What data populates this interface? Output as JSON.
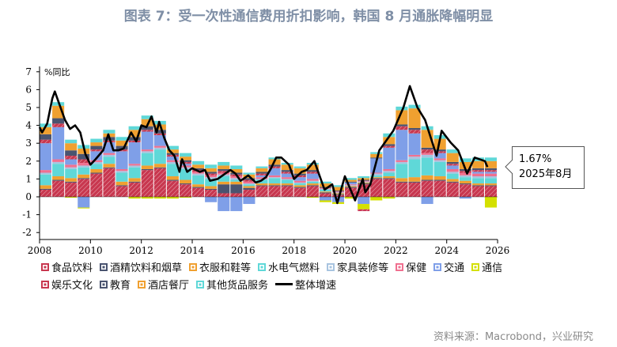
{
  "title": "图表 7：受一次性通信费用折扣影响，韩国 8 月通胀降幅明显",
  "source": "资料来源：Macrobond，兴业研究",
  "callout": {
    "value": "1.67%",
    "date": "2025年8月"
  },
  "chart_data": {
    "type": "bar",
    "stacked": true,
    "ylabel": "%同比",
    "ylim": [
      -2,
      7
    ],
    "xlim": [
      2008,
      2026
    ],
    "yticks": [
      "-2",
      "-1",
      "0",
      "1",
      "2",
      "3",
      "4",
      "5",
      "6",
      "7"
    ],
    "xticks": [
      "2008",
      "2010",
      "2012",
      "2014",
      "2016",
      "2018",
      "2020",
      "2022",
      "2024",
      "2026"
    ],
    "grid": false,
    "legend": "bottom",
    "periods": [
      2008.0,
      2008.5,
      2009.0,
      2009.5,
      2010.0,
      2010.5,
      2011.0,
      2011.5,
      2012.0,
      2012.5,
      2013.0,
      2013.5,
      2014.0,
      2014.5,
      2015.0,
      2015.5,
      2016.0,
      2016.5,
      2017.0,
      2017.5,
      2018.0,
      2018.5,
      2019.0,
      2019.5,
      2020.0,
      2020.5,
      2021.0,
      2021.5,
      2022.0,
      2022.5,
      2023.0,
      2023.5,
      2024.0,
      2024.5,
      2025.0,
      2025.5
    ],
    "series": [
      {
        "name": "食品饮料",
        "color": "#c8374f",
        "values": [
          0.4,
          0.9,
          0.8,
          1.0,
          1.3,
          1.6,
          0.6,
          0.8,
          1.5,
          1.6,
          0.9,
          0.7,
          0.5,
          0.4,
          0.2,
          0.2,
          0.4,
          0.6,
          0.6,
          0.6,
          0.5,
          0.6,
          0.2,
          0.1,
          0.5,
          0.7,
          1.0,
          1.0,
          0.8,
          0.8,
          0.9,
          0.9,
          0.8,
          0.7,
          0.6,
          0.6
        ]
      },
      {
        "name": "酒精饮料和烟草",
        "color": "#4a5470",
        "values": [
          0.05,
          0.05,
          0.05,
          0.05,
          0.05,
          0.05,
          0.05,
          0.05,
          0.05,
          0.05,
          0.05,
          0.05,
          0.05,
          0.05,
          0.5,
          0.5,
          0.1,
          0.05,
          0.05,
          0.05,
          0.05,
          0.05,
          0.05,
          0.05,
          0.05,
          0.05,
          0.05,
          0.05,
          0.05,
          0.05,
          0.05,
          0.05,
          0.05,
          0.05,
          0.05,
          0.05
        ]
      },
      {
        "name": "衣服和鞋等",
        "color": "#f0a030",
        "values": [
          0.2,
          0.2,
          0.2,
          0.2,
          0.2,
          0.2,
          0.2,
          0.2,
          0.2,
          0.2,
          0.2,
          0.2,
          0.15,
          0.15,
          0.15,
          0.15,
          0.1,
          0.1,
          0.1,
          0.1,
          0.1,
          0.1,
          0.05,
          0.05,
          0.05,
          0.05,
          0.05,
          0.1,
          0.2,
          0.25,
          0.25,
          0.2,
          0.15,
          0.15,
          0.1,
          0.1
        ]
      },
      {
        "name": "水电气燃料",
        "color": "#5fd8d8",
        "values": [
          0.6,
          0.7,
          0.5,
          0.4,
          0.3,
          0.4,
          0.5,
          0.6,
          0.7,
          0.8,
          0.7,
          0.6,
          0.5,
          0.4,
          0.3,
          0.1,
          0.1,
          0.2,
          0.3,
          0.2,
          0.1,
          0.1,
          0.1,
          0.0,
          0.0,
          0.0,
          0.1,
          0.2,
          0.8,
          1.0,
          1.0,
          0.8,
          0.3,
          0.2,
          0.3,
          0.3
        ]
      },
      {
        "name": "家具装修等",
        "color": "#a8c4e0",
        "values": [
          0.1,
          0.1,
          0.1,
          0.1,
          0.1,
          0.1,
          0.1,
          0.1,
          0.1,
          0.1,
          0.1,
          0.1,
          0.1,
          0.1,
          0.1,
          0.1,
          0.05,
          0.05,
          0.05,
          0.05,
          0.05,
          0.05,
          0.05,
          0.05,
          0.05,
          0.05,
          0.1,
          0.1,
          0.1,
          0.15,
          0.15,
          0.1,
          0.1,
          0.1,
          0.1,
          0.1
        ]
      },
      {
        "name": "保健",
        "color": "#f07090",
        "values": [
          0.15,
          0.15,
          0.15,
          0.15,
          0.1,
          0.1,
          0.1,
          0.1,
          0.1,
          0.1,
          0.1,
          0.1,
          0.1,
          0.1,
          0.1,
          0.1,
          0.1,
          0.1,
          0.1,
          0.1,
          0.1,
          0.1,
          0.05,
          0.05,
          0.05,
          0.05,
          0.05,
          0.1,
          0.1,
          0.1,
          0.1,
          0.1,
          0.15,
          0.15,
          0.15,
          0.15
        ]
      },
      {
        "name": "交通",
        "color": "#7f9fe8",
        "values": [
          1.5,
          1.8,
          0.3,
          -0.6,
          0.5,
          0.6,
          1.0,
          1.2,
          1.0,
          0.6,
          0.2,
          0.1,
          0.0,
          -0.3,
          -0.8,
          -0.8,
          -0.4,
          0.1,
          0.4,
          0.2,
          0.2,
          0.3,
          -0.2,
          -0.3,
          0.1,
          -0.4,
          0.8,
          1.2,
          1.7,
          1.2,
          -0.4,
          0.3,
          0.2,
          -0.1,
          0.1,
          0.1
        ]
      },
      {
        "name": "通信",
        "color": "#d4e000",
        "values": [
          0.0,
          0.0,
          -0.05,
          -0.05,
          0.0,
          0.0,
          0.0,
          -0.1,
          -0.1,
          -0.1,
          -0.1,
          -0.05,
          0.0,
          0.0,
          0.0,
          0.0,
          0.0,
          0.0,
          0.0,
          0.0,
          0.0,
          -0.05,
          -0.1,
          -0.1,
          -0.1,
          -0.3,
          -0.2,
          -0.1,
          0.0,
          0.0,
          0.0,
          0.0,
          0.0,
          0.0,
          0.0,
          -0.6
        ]
      },
      {
        "name": "娱乐文化",
        "color": "#c8374f",
        "values": [
          0.2,
          0.2,
          0.2,
          0.2,
          0.1,
          0.1,
          0.1,
          0.1,
          0.1,
          0.1,
          0.1,
          0.1,
          0.1,
          0.1,
          0.1,
          0.1,
          0.1,
          0.1,
          0.1,
          0.1,
          0.1,
          0.1,
          0.0,
          0.0,
          0.0,
          -0.1,
          0.0,
          0.1,
          0.2,
          0.2,
          0.2,
          0.1,
          0.1,
          0.1,
          0.1,
          0.1
        ]
      },
      {
        "name": "教育",
        "color": "#4a5470",
        "values": [
          0.3,
          0.3,
          0.3,
          0.3,
          0.2,
          0.2,
          0.2,
          0.2,
          0.2,
          0.2,
          0.1,
          0.1,
          0.1,
          0.1,
          0.1,
          0.1,
          0.1,
          0.1,
          0.1,
          0.1,
          0.1,
          0.1,
          0.05,
          0.05,
          0.05,
          0.05,
          0.05,
          0.1,
          0.1,
          0.1,
          0.1,
          0.1,
          0.1,
          0.1,
          0.1,
          0.1
        ]
      },
      {
        "name": "酒店餐厅",
        "color": "#f0a030",
        "values": [
          0.4,
          0.7,
          0.4,
          0.3,
          0.2,
          0.2,
          0.3,
          0.4,
          0.4,
          0.3,
          0.2,
          0.2,
          0.2,
          0.2,
          0.2,
          0.2,
          0.2,
          0.2,
          0.3,
          0.3,
          0.3,
          0.3,
          0.2,
          0.2,
          0.1,
          0.1,
          0.2,
          0.4,
          0.8,
          1.1,
          1.0,
          0.6,
          0.5,
          0.4,
          0.4,
          0.4
        ]
      },
      {
        "name": "其他货品服务",
        "color": "#5fd8d8",
        "values": [
          0.2,
          0.2,
          0.2,
          0.2,
          0.2,
          0.2,
          0.2,
          0.2,
          0.2,
          0.2,
          0.2,
          0.2,
          0.2,
          0.2,
          0.2,
          0.2,
          0.1,
          0.1,
          0.1,
          0.1,
          0.1,
          0.1,
          0.1,
          0.1,
          0.1,
          0.1,
          0.1,
          0.2,
          0.2,
          0.2,
          0.2,
          0.2,
          0.2,
          0.2,
          0.2,
          0.2
        ]
      }
    ],
    "line": {
      "name": "整体增速",
      "color": "#000000",
      "points": [
        [
          2008.0,
          3.9
        ],
        [
          2008.1,
          3.6
        ],
        [
          2008.3,
          4.1
        ],
        [
          2008.5,
          5.5
        ],
        [
          2008.6,
          5.9
        ],
        [
          2008.8,
          5.1
        ],
        [
          2009.0,
          4.3
        ],
        [
          2009.2,
          3.8
        ],
        [
          2009.4,
          4.0
        ],
        [
          2009.6,
          3.6
        ],
        [
          2009.8,
          2.4
        ],
        [
          2010.0,
          1.8
        ],
        [
          2010.2,
          2.1
        ],
        [
          2010.5,
          2.6
        ],
        [
          2010.7,
          3.5
        ],
        [
          2010.9,
          2.6
        ],
        [
          2011.1,
          2.6
        ],
        [
          2011.3,
          2.7
        ],
        [
          2011.6,
          3.6
        ],
        [
          2011.8,
          3.1
        ],
        [
          2012.0,
          4.0
        ],
        [
          2012.2,
          3.9
        ],
        [
          2012.4,
          4.5
        ],
        [
          2012.6,
          3.6
        ],
        [
          2012.7,
          4.2
        ],
        [
          2012.9,
          3.3
        ],
        [
          2013.1,
          2.6
        ],
        [
          2013.3,
          2.3
        ],
        [
          2013.5,
          1.4
        ],
        [
          2013.6,
          2.1
        ],
        [
          2013.8,
          1.4
        ],
        [
          2014.0,
          1.6
        ],
        [
          2014.3,
          1.4
        ],
        [
          2014.5,
          1.5
        ],
        [
          2014.7,
          0.9
        ],
        [
          2015.0,
          1.0
        ],
        [
          2015.3,
          1.3
        ],
        [
          2015.5,
          1.5
        ],
        [
          2015.7,
          1.3
        ],
        [
          2015.9,
          0.9
        ],
        [
          2016.0,
          1.0
        ],
        [
          2016.2,
          1.2
        ],
        [
          2016.5,
          0.8
        ],
        [
          2016.7,
          0.9
        ],
        [
          2016.9,
          1.1
        ],
        [
          2017.1,
          1.6
        ],
        [
          2017.3,
          2.2
        ],
        [
          2017.5,
          2.2
        ],
        [
          2017.8,
          1.8
        ],
        [
          2018.0,
          1.0
        ],
        [
          2018.3,
          1.4
        ],
        [
          2018.5,
          1.5
        ],
        [
          2018.8,
          2.0
        ],
        [
          2019.2,
          0.4
        ],
        [
          2019.5,
          0.7
        ],
        [
          2019.7,
          -0.35
        ],
        [
          2020.0,
          1.15
        ],
        [
          2020.4,
          -0.2
        ],
        [
          2020.7,
          1.0
        ],
        [
          2020.8,
          0.25
        ],
        [
          2021.0,
          0.7
        ],
        [
          2021.35,
          2.6
        ],
        [
          2021.9,
          3.7
        ],
        [
          2022.3,
          5.0
        ],
        [
          2022.55,
          6.2
        ],
        [
          2022.85,
          5.0
        ],
        [
          2023.15,
          4.3
        ],
        [
          2023.6,
          2.3
        ],
        [
          2023.8,
          3.7
        ],
        [
          2024.15,
          3.05
        ],
        [
          2024.45,
          2.6
        ],
        [
          2024.8,
          1.3
        ],
        [
          2025.1,
          2.2
        ],
        [
          2025.5,
          2.0
        ],
        [
          2025.6,
          1.67
        ]
      ]
    }
  }
}
